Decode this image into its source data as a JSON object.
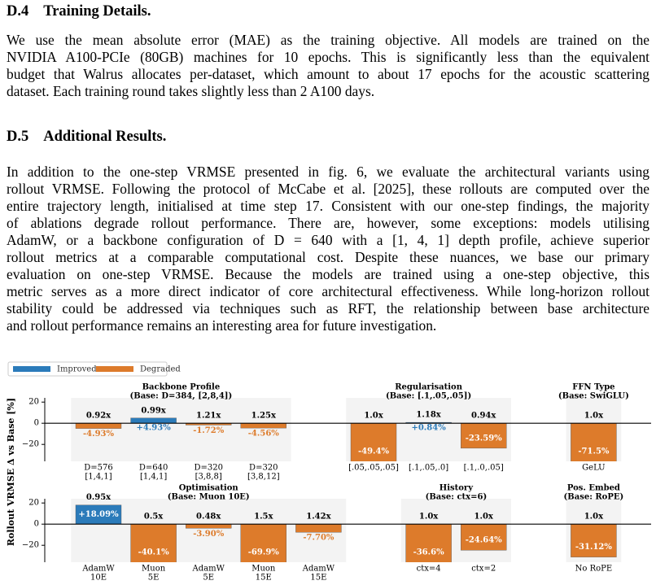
{
  "sections": [
    {
      "number": "D.4",
      "title": "Training Details.",
      "lines": [
        "We use the mean absolute error (MAE) as the training objective. All models are trained on the",
        "NVIDIA A100-PCIe (80GB) machines for 10 epochs. This is significantly less than the equivalent",
        "budget that Walrus allocates per-dataset, which amount to about 17 epochs for the acoustic scattering",
        "dataset. Each training round takes slightly less than 2 A100 days."
      ]
    },
    {
      "number": "D.5",
      "title": "Additional Results.",
      "lines": [
        "In addition to the one-step VRMSE presented in fig. 6, we evaluate the architectural variants using",
        "rollout VRMSE. Following the protocol of McCabe et al. [2025], these rollouts are computed over the",
        "entire trajectory length, initialised at time step 17. Consistent with our one-step findings, the majority",
        "of ablations degrade rollout performance. There are, however, some exceptions: models utilising",
        "AdamW, or a backbone configuration of D = 640 with a [1, 4, 1] depth profile, achieve superior",
        "rollout metrics at a comparable computational cost. Despite these nuances, we base our primary",
        "evaluation on one-step VRMSE. Because the models are trained using a one-step objective, this",
        "metric serves as a more direct indicator of core architectural effectiveness. While long-horizon rollout",
        "stability could be addressed via techniques such as RFT, the relationship between base architecture",
        "and rollout performance remains an interesting area for future investigation."
      ]
    }
  ],
  "chart_data": {
    "type": "bar",
    "ylabel": "Rollout VRMSE Δ vs Base [%]",
    "legend": [
      {
        "name": "Improved",
        "color": "#2b7bba"
      },
      {
        "name": "Degraded",
        "color": "#dd7b2b"
      }
    ],
    "panels": [
      {
        "ylim": [
          -36,
          24
        ],
        "yticks": [
          {
            "value": -20,
            "label": "−20"
          },
          0,
          20
        ],
        "groups": [
          {
            "title": "Backbone Profile",
            "subtitle": "(Base: D=384, [2,8,4])",
            "categories": [
              [
                "D=576",
                "[1,4,1]"
              ],
              [
                "D=640",
                "[1,4,1]"
              ],
              [
                "D=320",
                "[3,8,8]"
              ],
              [
                "D=320",
                "[3,8,12]"
              ]
            ],
            "values": [
              -4.93,
              4.93,
              -1.72,
              -4.56
            ],
            "value_labels": [
              "-4.93%",
              "+4.93%",
              "-1.72%",
              "-4.56%"
            ],
            "costs": [
              "0.92x",
              "0.99x",
              "1.21x",
              "1.25x"
            ]
          },
          {
            "title": "Regularisation",
            "subtitle": "(Base: [.1,.05,.05])",
            "categories": [
              [
                "[.05,.05,.05]"
              ],
              [
                "[.1,.05,.0]"
              ],
              [
                "[.1,.0,.05]"
              ]
            ],
            "values": [
              -49.4,
              0.84,
              -23.59
            ],
            "value_labels": [
              "-49.4%",
              "+0.84%",
              "-23.59%"
            ],
            "costs": [
              "1.0x",
              "1.18x",
              "0.94x"
            ]
          },
          {
            "title": "FFN Type",
            "subtitle": "(Base: SwiGLU)",
            "categories": [
              [
                "GeLU"
              ]
            ],
            "values": [
              -71.5
            ],
            "value_labels": [
              "-71.5%"
            ],
            "costs": [
              "1.0x"
            ]
          }
        ]
      },
      {
        "ylim": [
          -36,
          24
        ],
        "yticks": [
          {
            "value": -20,
            "label": "−20"
          },
          0,
          20
        ],
        "groups": [
          {
            "title": "Optimisation",
            "subtitle": "(Base: Muon 10E)",
            "categories": [
              [
                "AdamW",
                "10E"
              ],
              [
                "Muon",
                "5E"
              ],
              [
                "AdamW",
                "5E"
              ],
              [
                "Muon",
                "15E"
              ],
              [
                "AdamW",
                "15E"
              ]
            ],
            "values": [
              18.09,
              -40.1,
              -3.9,
              -69.9,
              -7.7
            ],
            "value_labels": [
              "+18.09%",
              "-40.1%",
              "-3.90%",
              "-69.9%",
              "-7.70%"
            ],
            "costs": [
              "0.95x",
              "0.5x",
              "0.48x",
              "1.5x",
              "1.42x"
            ]
          },
          {
            "title": "History",
            "subtitle": "(Base: ctx=6)",
            "categories": [
              [
                "ctx=4"
              ],
              [
                "ctx=2"
              ]
            ],
            "values": [
              -36.6,
              -24.64
            ],
            "value_labels": [
              "-36.6%",
              "-24.64%"
            ],
            "costs": [
              "1.0x",
              "1.0x"
            ]
          },
          {
            "title": "Pos. Embed",
            "subtitle": "(Base: RoPE)",
            "categories": [
              [
                "No RoPE"
              ]
            ],
            "values": [
              -31.12
            ],
            "value_labels": [
              "-31.12%"
            ],
            "costs": [
              "1.0x"
            ]
          }
        ]
      }
    ]
  }
}
